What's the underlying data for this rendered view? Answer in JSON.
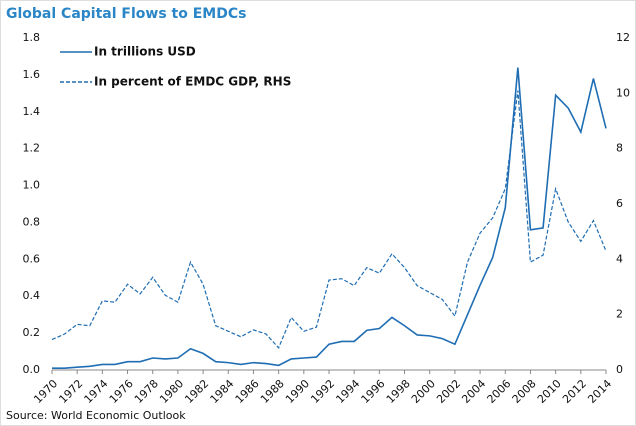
{
  "chart_data": {
    "type": "line",
    "title": "Global Capital Flows to EMDCs",
    "source": "Source: World Economic Outlook",
    "x": [
      1970,
      1971,
      1972,
      1973,
      1974,
      1975,
      1976,
      1977,
      1978,
      1979,
      1980,
      1981,
      1982,
      1983,
      1984,
      1985,
      1986,
      1987,
      1988,
      1989,
      1990,
      1991,
      1992,
      1993,
      1994,
      1995,
      1996,
      1997,
      1998,
      1999,
      2000,
      2001,
      2002,
      2003,
      2004,
      2005,
      2006,
      2007,
      2008,
      2009,
      2010,
      2011,
      2012,
      2013,
      2014
    ],
    "xlim": [
      1970,
      2014
    ],
    "xticks": [
      1970,
      1972,
      1974,
      1976,
      1978,
      1980,
      1982,
      1984,
      1986,
      1988,
      1990,
      1992,
      1994,
      1996,
      1998,
      2000,
      2002,
      2004,
      2006,
      2008,
      2010,
      2012,
      2014
    ],
    "ylim": [
      0,
      1.8
    ],
    "yticks": [
      {
        "value": 0,
        "label": "0.0"
      },
      0.2,
      0.4,
      0.6,
      0.8,
      {
        "value": 1,
        "label": "1.0"
      },
      1.2,
      1.4,
      1.6,
      1.8
    ],
    "y2lim": [
      0,
      12
    ],
    "y2ticks": [
      0,
      2,
      4,
      6,
      8,
      10,
      12
    ],
    "series": [
      {
        "name": "In trillions USD",
        "color": "#1f6db3",
        "dash": false,
        "values": [
          0.01,
          0.01,
          0.015,
          0.02,
          0.03,
          0.03,
          0.045,
          0.045,
          0.065,
          0.06,
          0.065,
          0.115,
          0.09,
          0.045,
          0.04,
          0.03,
          0.04,
          0.035,
          0.025,
          0.06,
          0.065,
          0.07,
          0.14,
          0.155,
          0.155,
          0.215,
          0.225,
          0.285,
          0.24,
          0.19,
          0.185,
          0.17,
          0.14,
          0.3,
          0.46,
          0.61,
          0.88,
          1.64,
          0.76,
          0.77,
          1.49,
          1.42,
          1.29,
          1.58,
          1.31
        ]
      },
      {
        "name": "In percent of EMDC GDP, RHS",
        "color": "#1f6db3",
        "dash": true,
        "axis": "y2",
        "values": [
          1.1,
          1.3,
          1.65,
          1.6,
          2.5,
          2.45,
          3.1,
          2.75,
          3.35,
          2.7,
          2.45,
          3.9,
          3.1,
          1.6,
          1.4,
          1.2,
          1.45,
          1.3,
          0.8,
          1.9,
          1.4,
          1.55,
          3.25,
          3.3,
          3.05,
          3.7,
          3.5,
          4.2,
          3.7,
          3.05,
          2.8,
          2.55,
          1.95,
          3.9,
          4.95,
          5.5,
          6.55,
          10.1,
          3.9,
          4.15,
          6.55,
          5.35,
          4.65,
          5.4,
          4.3
        ]
      }
    ]
  }
}
